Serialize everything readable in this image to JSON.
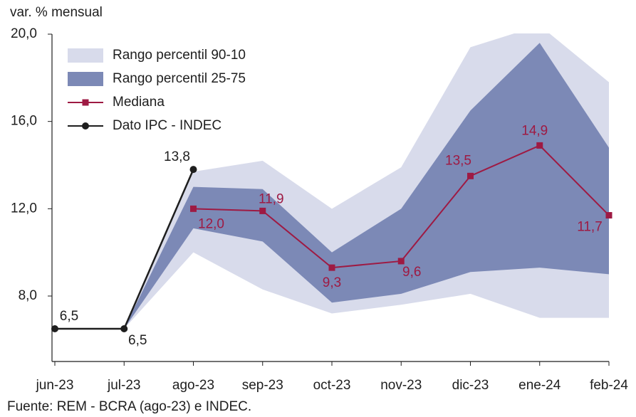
{
  "chart_data": {
    "type": "line",
    "y_label": "var. % mensual",
    "source": "Fuente: REM - BCRA (ago-23) e INDEC.",
    "categories": [
      "jun-23",
      "jul-23",
      "ago-23",
      "sep-23",
      "oct-23",
      "nov-23",
      "dic-23",
      "ene-24",
      "feb-24"
    ],
    "ylim": [
      5,
      20
    ],
    "yticks": [
      {
        "value": 8,
        "label": "8,0"
      },
      {
        "value": 12,
        "label": "12,0"
      },
      {
        "value": 16,
        "label": "16,0"
      },
      {
        "value": 20,
        "label": "20,0"
      }
    ],
    "grid": false,
    "legend": "upper left",
    "series": [
      {
        "name": "Rango percentil 90-10",
        "type": "band",
        "color": "#d8dbeb",
        "upper": [
          null,
          6.5,
          13.7,
          14.2,
          12.0,
          13.9,
          19.4,
          20.4,
          17.8
        ],
        "lower": [
          null,
          6.5,
          10.0,
          8.3,
          7.2,
          7.6,
          8.1,
          7.0,
          7.0
        ]
      },
      {
        "name": "Rango percentil 25-75",
        "type": "band",
        "color": "#7c89b6",
        "upper": [
          null,
          6.5,
          13.0,
          12.9,
          10.0,
          12.0,
          16.5,
          19.6,
          14.8
        ],
        "lower": [
          null,
          6.5,
          11.1,
          10.5,
          7.7,
          8.1,
          9.1,
          9.3,
          9.0
        ]
      },
      {
        "name": "Mediana",
        "type": "line",
        "marker": "square",
        "color": "#9e1a43",
        "values": [
          null,
          null,
          12.0,
          11.9,
          9.3,
          9.6,
          13.5,
          14.9,
          11.7
        ],
        "value_labels": [
          null,
          null,
          "12,0",
          "11,9",
          "9,3",
          "9,6",
          "13,5",
          "14,9",
          "11,7"
        ]
      },
      {
        "name": "Dato IPC - INDEC",
        "type": "line",
        "marker": "circle",
        "color": "#1e1e1e",
        "values": [
          6.5,
          6.5,
          13.8,
          null,
          null,
          null,
          null,
          null,
          null
        ],
        "value_labels": [
          "6,5",
          "6,5",
          "13,8",
          null,
          null,
          null,
          null,
          null,
          null
        ]
      }
    ]
  }
}
